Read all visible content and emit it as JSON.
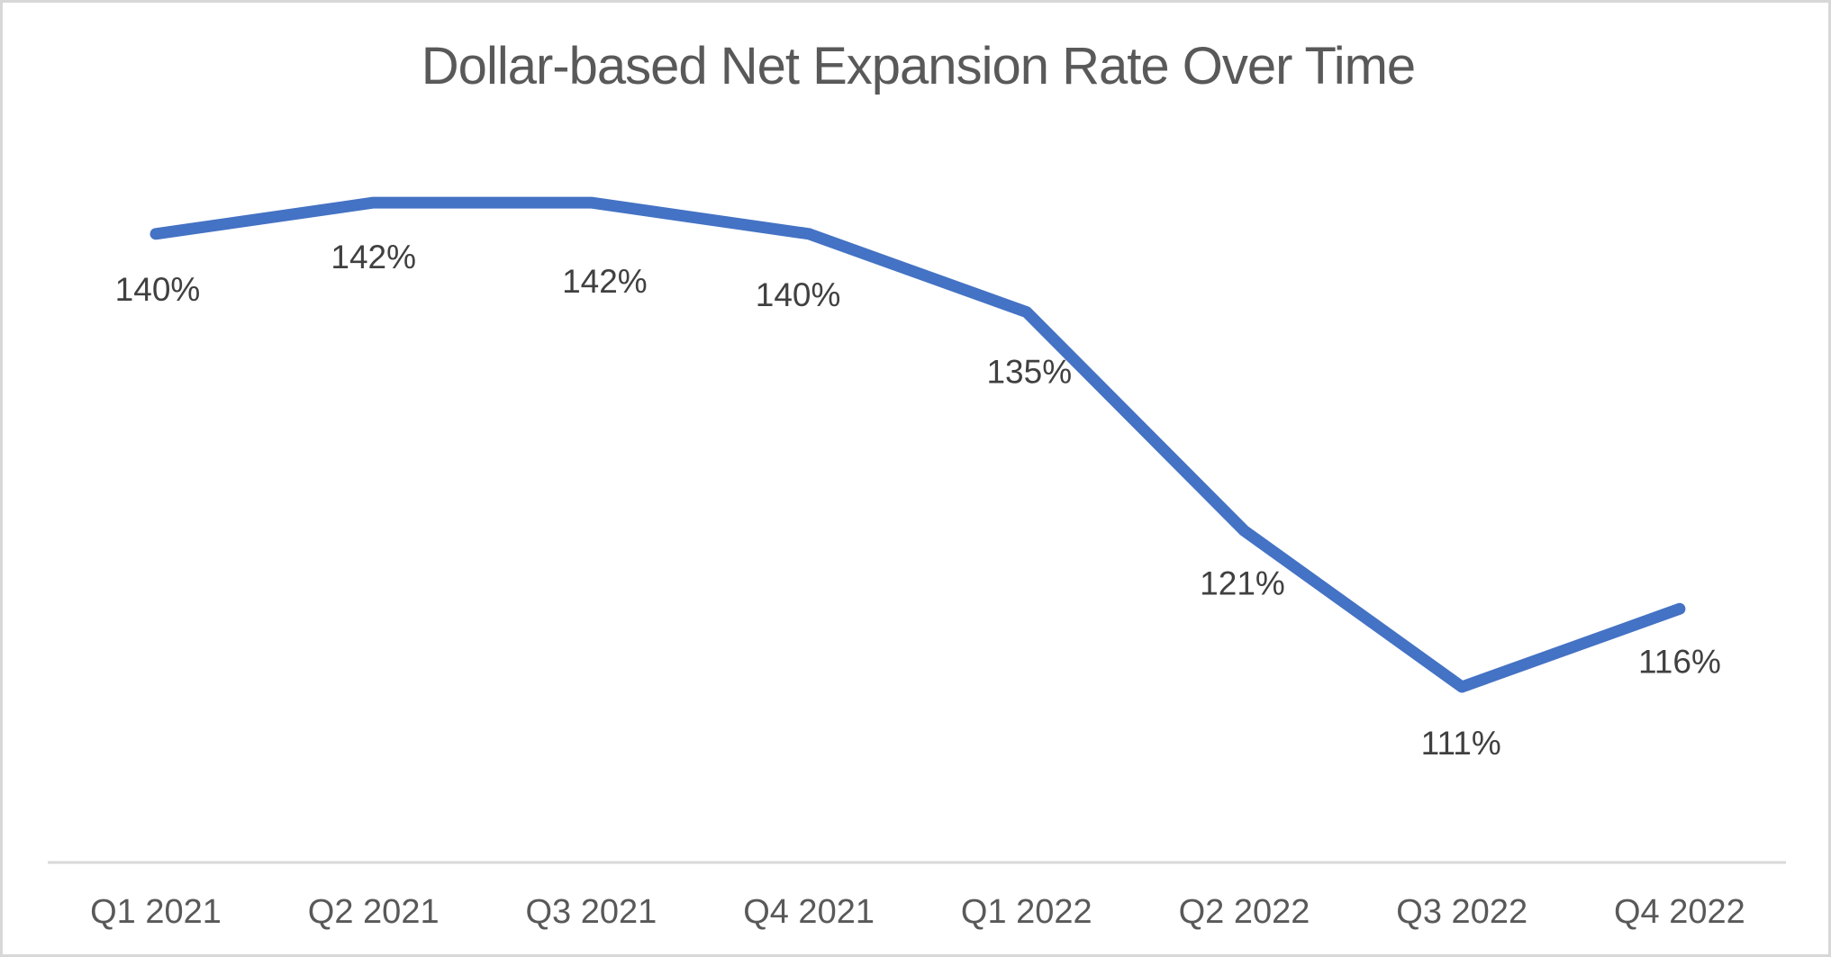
{
  "chart_data": {
    "type": "line",
    "title": "Dollar-based Net Expansion Rate Over Time",
    "categories": [
      "Q1 2021",
      "Q2 2021",
      "Q3 2021",
      "Q4 2021",
      "Q1 2022",
      "Q2 2022",
      "Q3 2022",
      "Q4 2022"
    ],
    "values": [
      140,
      142,
      142,
      140,
      135,
      121,
      111,
      116
    ],
    "data_labels": [
      "140%",
      "142%",
      "142%",
      "140%",
      "135%",
      "121%",
      "111%",
      "116%"
    ],
    "unit": "%",
    "xlabel": "",
    "ylabel": "",
    "y_axis_visible": false,
    "gridlines": false,
    "legend_position": "none",
    "data_labels_position": "below",
    "colors": {
      "series_line": "#4472C4",
      "data_label_text": "#404040",
      "axis_label_text": "#595959",
      "title_text": "#595959",
      "axis_line": "#D9D9D9",
      "background": "#FFFFFF",
      "card_border": "#D7D7D7"
    }
  }
}
